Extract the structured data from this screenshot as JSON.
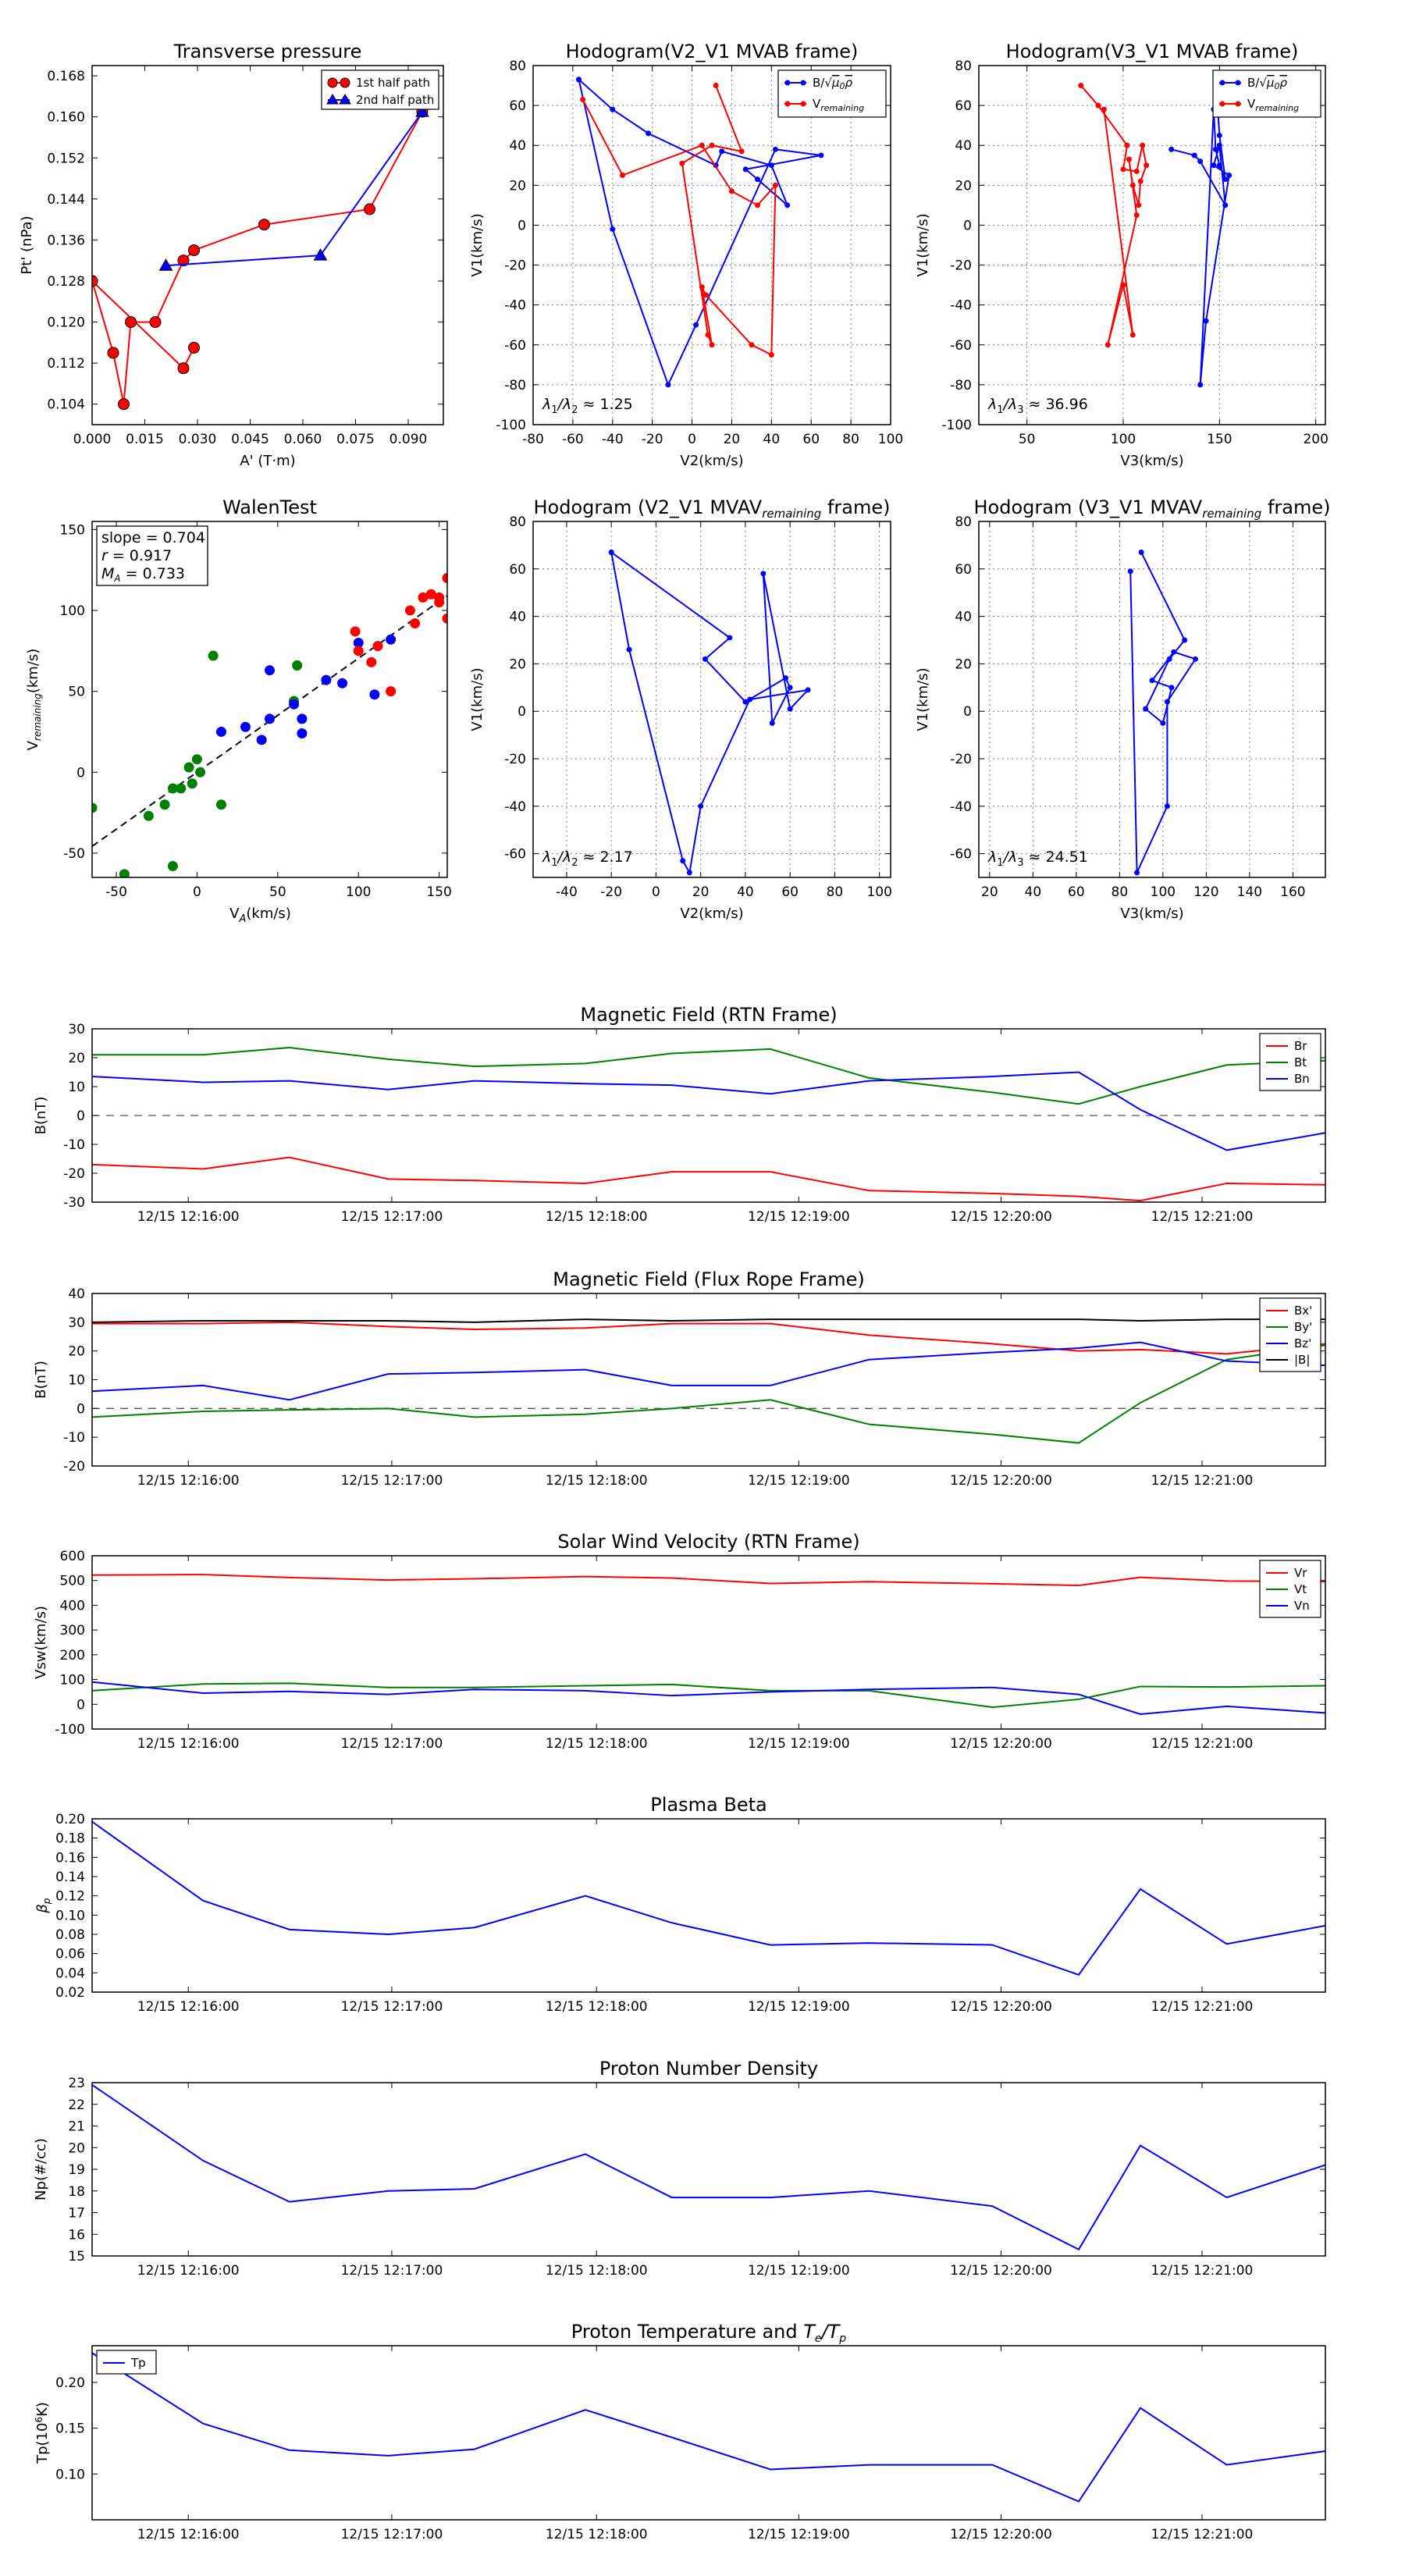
{
  "colors": {
    "red": "#ff0000",
    "green": "#008000",
    "blue": "#0000ff",
    "black": "#000000",
    "grid": "#7f7f7f"
  },
  "chart_data": [
    {
      "id": "pt",
      "type": "scatter",
      "title": "Transverse pressure",
      "xlabel": "A' (T·m)",
      "ylabel": "Pt' (nPa)",
      "xlim": [
        0,
        0.1
      ],
      "ylim": [
        0.1,
        0.17
      ],
      "xticks": [
        0.0,
        0.015,
        0.03,
        0.045,
        0.06,
        0.075,
        0.09
      ],
      "xtick_labels": [
        "0.000",
        "0.015",
        "0.030",
        "0.045",
        "0.060",
        "0.075",
        "0.090"
      ],
      "yticks": [
        0.104,
        0.112,
        0.12,
        0.128,
        0.136,
        0.144,
        0.152,
        0.16,
        0.168
      ],
      "ytick_labels": [
        "0.104",
        "0.112",
        "0.120",
        "0.128",
        "0.136",
        "0.144",
        "0.152",
        "0.160",
        "0.168"
      ],
      "grid": false,
      "legend": "top-right",
      "series": [
        {
          "name": "1st half path",
          "color": "red",
          "marker": "circle",
          "x": [
            0.094,
            0.079,
            0.049,
            0.029,
            0.026,
            0.018,
            0.011,
            0.009,
            0.006,
            0.0,
            0.0,
            0.026,
            0.029
          ],
          "y": [
            0.161,
            0.142,
            0.139,
            0.134,
            0.132,
            0.12,
            0.12,
            0.104,
            0.114,
            0.128,
            0.128,
            0.111,
            0.115
          ]
        },
        {
          "name": "2nd half path",
          "color": "blue",
          "marker": "triangle",
          "x": [
            0.094,
            0.065,
            0.021
          ],
          "y": [
            0.161,
            0.133,
            0.131
          ]
        }
      ]
    },
    {
      "id": "h1",
      "type": "line",
      "title": "Hodogram(V2_V1 MVAB frame)",
      "xlabel": "V2(km/s)",
      "ylabel": "V1(km/s)",
      "xlim": [
        -80,
        100
      ],
      "ylim": [
        -100,
        80
      ],
      "xticks": [
        -80,
        -60,
        -40,
        -20,
        0,
        20,
        40,
        60,
        80,
        100
      ],
      "yticks": [
        -100,
        -80,
        -60,
        -40,
        -20,
        0,
        20,
        40,
        60,
        80
      ],
      "grid": true,
      "legend": "top-right",
      "annotation": "λ1/λ2 ≈ 1.25",
      "series": [
        {
          "name": "B/√μ0ρ",
          "color": "blue",
          "marker": "dot",
          "x": [
            -57,
            -40,
            -22,
            12,
            15,
            40,
            48,
            33,
            27,
            65,
            42,
            2,
            -12,
            -40,
            -57
          ],
          "y": [
            73,
            58,
            46,
            30,
            37,
            30,
            10,
            23,
            28,
            35,
            38,
            -50,
            -80,
            -2,
            73
          ]
        },
        {
          "name": "V_remaining",
          "color": "red",
          "marker": "dot",
          "x": [
            12,
            25,
            10,
            -5,
            8,
            10,
            5,
            7,
            30,
            40,
            42,
            33,
            20,
            5,
            -35,
            -55
          ],
          "y": [
            70,
            37,
            40,
            31,
            -55,
            -60,
            -31,
            -35,
            -60,
            -65,
            20,
            10,
            17,
            40,
            25,
            63
          ]
        }
      ]
    },
    {
      "id": "h2",
      "type": "line",
      "title": "Hodogram(V3_V1 MVAB frame)",
      "xlabel": "V3(km/s)",
      "ylabel": "V1(km/s)",
      "xlim": [
        25,
        205
      ],
      "ylim": [
        -100,
        80
      ],
      "xticks": [
        50,
        100,
        150,
        200
      ],
      "yticks": [
        -100,
        -80,
        -60,
        -40,
        -20,
        0,
        20,
        40,
        60,
        80
      ],
      "grid": true,
      "legend": "top-right",
      "annotation": "λ1/λ3 ≈ 36.96",
      "series": [
        {
          "name": "B/√μ0ρ",
          "color": "blue",
          "marker": "dot",
          "x": [
            148,
            150,
            153,
            150,
            148,
            147,
            140,
            143,
            155,
            147,
            150,
            153,
            140,
            137,
            125
          ],
          "y": [
            73,
            45,
            23,
            30,
            38,
            58,
            -80,
            -48,
            25,
            30,
            40,
            10,
            32,
            35,
            38
          ]
        },
        {
          "name": "V_remaining",
          "color": "red",
          "marker": "dot",
          "x": [
            78,
            87,
            102,
            100,
            107,
            110,
            112,
            109,
            108,
            105,
            103,
            107,
            92,
            100,
            105,
            90
          ],
          "y": [
            70,
            60,
            40,
            28,
            27,
            40,
            30,
            22,
            10,
            20,
            33,
            5,
            -60,
            -30,
            -55,
            58
          ]
        }
      ]
    },
    {
      "id": "walen",
      "type": "scatter",
      "title": "WalenTest",
      "xlabel": "V_A(km/s)",
      "ylabel": "V_remaining(km/s)",
      "xlim": [
        -65,
        155
      ],
      "ylim": [
        -65,
        155
      ],
      "xticks": [
        -50,
        0,
        50,
        100,
        150
      ],
      "yticks": [
        -50,
        0,
        50,
        100,
        150
      ],
      "grid": false,
      "stats": {
        "slope": "slope = 0.704",
        "r": "r = 0.917",
        "ma": "MA = 0.733"
      },
      "fit_slope": 0.704,
      "series": [
        {
          "name": "green",
          "color": "green",
          "x": [
            -65,
            -45,
            -30,
            -20,
            -15,
            -10,
            -5,
            -3,
            0,
            2,
            10,
            15,
            60,
            62,
            -15
          ],
          "y": [
            -22,
            -63,
            -27,
            -20,
            -10,
            -10,
            3,
            -7,
            8,
            0,
            72,
            -20,
            44,
            66,
            -58
          ]
        },
        {
          "name": "blue",
          "color": "blue",
          "x": [
            15,
            30,
            40,
            45,
            60,
            65,
            65,
            80,
            90,
            100,
            110,
            120,
            45
          ],
          "y": [
            25,
            28,
            20,
            33,
            42,
            33,
            24,
            57,
            55,
            80,
            48,
            82,
            63
          ]
        },
        {
          "name": "red",
          "color": "red",
          "x": [
            98,
            100,
            108,
            112,
            120,
            132,
            135,
            140,
            145,
            150,
            155,
            155,
            150
          ],
          "y": [
            87,
            75,
            68,
            78,
            50,
            100,
            92,
            108,
            110,
            105,
            120,
            95,
            108
          ]
        }
      ]
    },
    {
      "id": "h3",
      "type": "line",
      "title": "Hodogram (V2_V1 MVAV_remaining frame)",
      "xlabel": "V2(km/s)",
      "ylabel": "V1(km/s)",
      "xlim": [
        -55,
        105
      ],
      "ylim": [
        -70,
        80
      ],
      "xticks": [
        -40,
        -20,
        0,
        20,
        40,
        60,
        80,
        100
      ],
      "yticks": [
        -60,
        -40,
        -20,
        0,
        20,
        40,
        60,
        80
      ],
      "grid": true,
      "annotation": "λ1/λ2 ≈ 2.17",
      "series": [
        {
          "name": "blue",
          "color": "blue",
          "marker": "dot",
          "x": [
            -20,
            33,
            22,
            40,
            58,
            60,
            52,
            48,
            60,
            68,
            42,
            20,
            15,
            12,
            -12,
            -20
          ],
          "y": [
            67,
            31,
            22,
            4,
            14,
            10,
            -5,
            58,
            1,
            9,
            5,
            -40,
            -68,
            -63,
            26,
            67
          ]
        }
      ]
    },
    {
      "id": "h4",
      "type": "line",
      "title": "Hodogram (V3_V1 MVAV_remaining frame)",
      "xlabel": "V3(km/s)",
      "ylabel": "V1(km/s)",
      "xlim": [
        15,
        175
      ],
      "ylim": [
        -70,
        80
      ],
      "xticks": [
        20,
        40,
        60,
        80,
        100,
        120,
        140,
        160
      ],
      "yticks": [
        -60,
        -40,
        -20,
        0,
        20,
        40,
        60,
        80
      ],
      "grid": true,
      "annotation": "λ1/λ3 ≈ 24.51",
      "series": [
        {
          "name": "blue",
          "color": "blue",
          "marker": "dot",
          "x": [
            90,
            110,
            103,
            92,
            100,
            104,
            95,
            105,
            115,
            102,
            102,
            88,
            85
          ],
          "y": [
            67,
            30,
            22,
            1,
            -5,
            10,
            13,
            25,
            22,
            4,
            -40,
            -68,
            59
          ]
        }
      ]
    },
    {
      "id": "bfield",
      "type": "line",
      "title": "Magnetic Field (RTN Frame)",
      "ylabel": "B(nT)",
      "xlim": [
        0,
        1
      ],
      "ylim": [
        -30,
        30
      ],
      "yticks": [
        -30,
        -20,
        -10,
        0,
        10,
        20,
        30
      ],
      "zero_line": true,
      "legend": "top-right",
      "series": [
        {
          "name": "Br",
          "color": "red",
          "y": [
            -17,
            -18.5,
            -14.5,
            -22,
            -22.5,
            -23.5,
            -19.5,
            -19.5,
            -26,
            -27,
            -28,
            -29.5,
            -23.5,
            -24
          ]
        },
        {
          "name": "Bt",
          "color": "green",
          "y": [
            21,
            21,
            23.5,
            19.5,
            17,
            18,
            21.5,
            23,
            13,
            8,
            4,
            10,
            17.5,
            19
          ]
        },
        {
          "name": "Bn",
          "color": "blue",
          "y": [
            13.5,
            11.5,
            12,
            9,
            12,
            11,
            10.5,
            7.5,
            12,
            13.5,
            15,
            2,
            -12,
            -6
          ]
        }
      ]
    },
    {
      "id": "bflux",
      "type": "line",
      "title": "Magnetic Field (Flux Rope Frame)",
      "ylabel": "B(nT)",
      "xlim": [
        0,
        1
      ],
      "ylim": [
        -20,
        40
      ],
      "yticks": [
        -20,
        -10,
        0,
        10,
        20,
        30,
        40
      ],
      "zero_line": true,
      "legend": "top-right",
      "series": [
        {
          "name": "Bx'",
          "color": "red",
          "y": [
            29.5,
            29.5,
            30,
            28.5,
            27.5,
            28,
            29.5,
            29.5,
            25.5,
            22.5,
            20,
            20.5,
            19,
            22.5
          ]
        },
        {
          "name": "By'",
          "color": "green",
          "y": [
            -3,
            -1,
            -0.5,
            0,
            -3,
            -2,
            0,
            3,
            -5.5,
            -9,
            -12,
            2,
            17,
            22
          ]
        },
        {
          "name": "Bz'",
          "color": "blue",
          "y": [
            6,
            8,
            3,
            12,
            12.5,
            13.5,
            8,
            8,
            17,
            19.5,
            21,
            23,
            16.5,
            15
          ]
        },
        {
          "name": "|B|",
          "color": "black",
          "y": [
            30,
            30.5,
            30.5,
            30.5,
            30,
            31,
            30.5,
            31,
            31,
            31,
            31,
            30.5,
            31,
            31
          ]
        }
      ]
    },
    {
      "id": "vsw",
      "type": "line",
      "title": "Solar Wind Velocity (RTN Frame)",
      "ylabel": "Vsw(km/s)",
      "xlim": [
        0,
        1
      ],
      "ylim": [
        -100,
        600
      ],
      "yticks": [
        -100,
        0,
        100,
        200,
        300,
        400,
        500,
        600
      ],
      "legend": "top-right",
      "series": [
        {
          "name": "Vr",
          "color": "red",
          "y": [
            522,
            524,
            512,
            502,
            507,
            516,
            510,
            488,
            495,
            487,
            480,
            513,
            498,
            496
          ]
        },
        {
          "name": "Vt",
          "color": "green",
          "y": [
            55,
            82,
            85,
            68,
            68,
            75,
            80,
            55,
            55,
            -12,
            20,
            72,
            70,
            75
          ]
        },
        {
          "name": "Vn",
          "color": "blue",
          "y": [
            90,
            45,
            52,
            40,
            60,
            55,
            35,
            50,
            60,
            68,
            40,
            -40,
            -8,
            -35
          ]
        }
      ]
    },
    {
      "id": "beta",
      "type": "line",
      "title": "Plasma Beta",
      "ylabel": "βp",
      "xlim": [
        0,
        1
      ],
      "ylim": [
        0.02,
        0.2
      ],
      "yticks": [
        0.02,
        0.04,
        0.06,
        0.08,
        0.1,
        0.12,
        0.14,
        0.16,
        0.18,
        0.2
      ],
      "ytick_labels": [
        "0.02",
        "0.04",
        "0.06",
        "0.08",
        "0.10",
        "0.12",
        "0.14",
        "0.16",
        "0.18",
        "0.20"
      ],
      "series": [
        {
          "name": "beta",
          "color": "blue",
          "y": [
            0.197,
            0.115,
            0.085,
            0.08,
            0.087,
            0.12,
            0.092,
            0.069,
            0.071,
            0.069,
            0.038,
            0.127,
            0.07,
            0.089
          ]
        }
      ]
    },
    {
      "id": "np",
      "type": "line",
      "title": "Proton Number Density",
      "ylabel": "Np(#/cc)",
      "xlim": [
        0,
        1
      ],
      "ylim": [
        15,
        23
      ],
      "yticks": [
        15,
        16,
        17,
        18,
        19,
        20,
        21,
        22,
        23
      ],
      "series": [
        {
          "name": "Np",
          "color": "blue",
          "y": [
            22.9,
            19.4,
            17.5,
            18,
            18.1,
            19.7,
            17.7,
            17.7,
            18,
            17.3,
            15.3,
            20.1,
            17.7,
            19.2
          ]
        }
      ]
    },
    {
      "id": "tp",
      "type": "line",
      "title": "Proton Temperature and Te/Tp",
      "ylabel": "Tp(10^6 K)",
      "xlim": [
        0,
        1
      ],
      "ylim": [
        0.05,
        0.24
      ],
      "yticks": [
        0.1,
        0.15,
        0.2
      ],
      "ytick_labels": [
        "0.10",
        "0.15",
        "0.20"
      ],
      "legend": "top-left",
      "series": [
        {
          "name": "Tp",
          "color": "blue",
          "y": [
            0.232,
            0.155,
            0.126,
            0.12,
            0.127,
            0.17,
            0.14,
            0.105,
            0.11,
            0.11,
            0.07,
            0.172,
            0.11,
            0.125
          ]
        }
      ]
    }
  ],
  "time_axis": {
    "sample_x": [
      0,
      0.09,
      0.16,
      0.24,
      0.31,
      0.4,
      0.47,
      0.55,
      0.63,
      0.73,
      0.8,
      0.85,
      0.92,
      1.0
    ],
    "tick_x": [
      0.078,
      0.243,
      0.409,
      0.573,
      0.737,
      0.9
    ],
    "tick_labels": [
      "12/15 12:16:00",
      "12/15 12:17:00",
      "12/15 12:18:00",
      "12/15 12:19:00",
      "12/15 12:20:00",
      "12/15 12:21:00"
    ]
  }
}
